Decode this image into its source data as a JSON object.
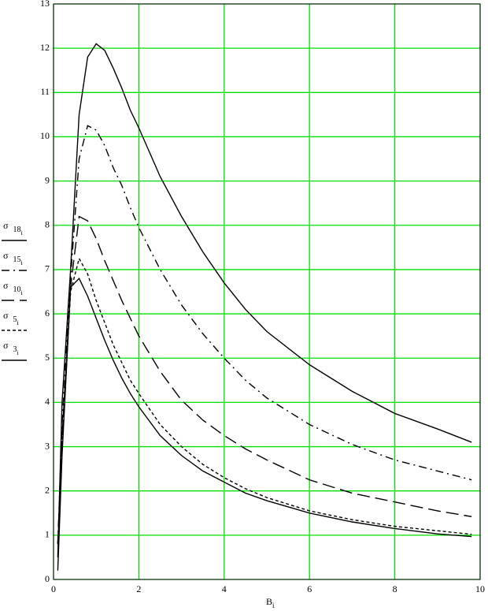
{
  "chart_data": {
    "type": "line",
    "x_label": "B",
    "x_label_index": "i",
    "x": [
      0.1,
      0.2,
      0.4,
      0.6,
      0.8,
      1.0,
      1.2,
      1.4,
      1.6,
      1.8,
      2,
      2.5,
      3,
      3.5,
      4,
      4.5,
      5,
      6,
      7,
      8,
      9,
      9.8
    ],
    "series": [
      {
        "name": "σ",
        "subscript": "18",
        "index": "i",
        "color": "#000000",
        "dash": "none",
        "values": [
          0.5,
          4,
          7,
          10.5,
          11.8,
          12.1,
          11.95,
          11.55,
          11.1,
          10.6,
          10.2,
          9.1,
          8.2,
          7.4,
          6.7,
          6.1,
          5.6,
          4.85,
          4.25,
          3.75,
          3.4,
          3.1
        ]
      },
      {
        "name": "σ",
        "subscript": "15",
        "index": "i",
        "color": "#000000",
        "dash": "10 5 2 5",
        "values": [
          0.8,
          3.5,
          6.8,
          9.5,
          10.25,
          10.15,
          9.8,
          9.3,
          8.9,
          8.4,
          7.95,
          7.0,
          6.2,
          5.55,
          5.0,
          4.5,
          4.1,
          3.5,
          3.05,
          2.7,
          2.45,
          2.25
        ]
      },
      {
        "name": "σ",
        "subscript": "10",
        "index": "i",
        "color": "#000000",
        "dash": "16 7",
        "values": [
          0.8,
          3.2,
          6.6,
          8.2,
          8.1,
          7.7,
          7.2,
          6.75,
          6.3,
          5.9,
          5.5,
          4.7,
          4.05,
          3.6,
          3.25,
          2.95,
          2.7,
          2.25,
          1.95,
          1.75,
          1.55,
          1.42
        ]
      },
      {
        "name": "σ",
        "subscript": "5",
        "index": "i",
        "color": "#000000",
        "dash": "4 3",
        "values": [
          0.8,
          3.0,
          6.5,
          7.25,
          6.9,
          6.3,
          5.8,
          5.3,
          4.9,
          4.5,
          4.2,
          3.5,
          3.0,
          2.6,
          2.3,
          2.05,
          1.85,
          1.55,
          1.35,
          1.2,
          1.1,
          1.02
        ]
      },
      {
        "name": "σ",
        "subscript": "3",
        "index": "i",
        "color": "#000000",
        "dash": "none",
        "values": [
          0.2,
          2.8,
          6.6,
          6.8,
          6.4,
          5.9,
          5.4,
          4.95,
          4.55,
          4.2,
          3.9,
          3.25,
          2.8,
          2.45,
          2.2,
          1.95,
          1.78,
          1.5,
          1.3,
          1.15,
          1.03,
          0.97
        ]
      }
    ],
    "xlim": [
      0,
      10
    ],
    "xticks": [
      0,
      2,
      4,
      6,
      8,
      10
    ],
    "ylim": [
      0,
      13
    ],
    "yticks": [
      0,
      1,
      2,
      3,
      4,
      5,
      6,
      7,
      8,
      9,
      10,
      11,
      12,
      13
    ],
    "grid": true
  }
}
